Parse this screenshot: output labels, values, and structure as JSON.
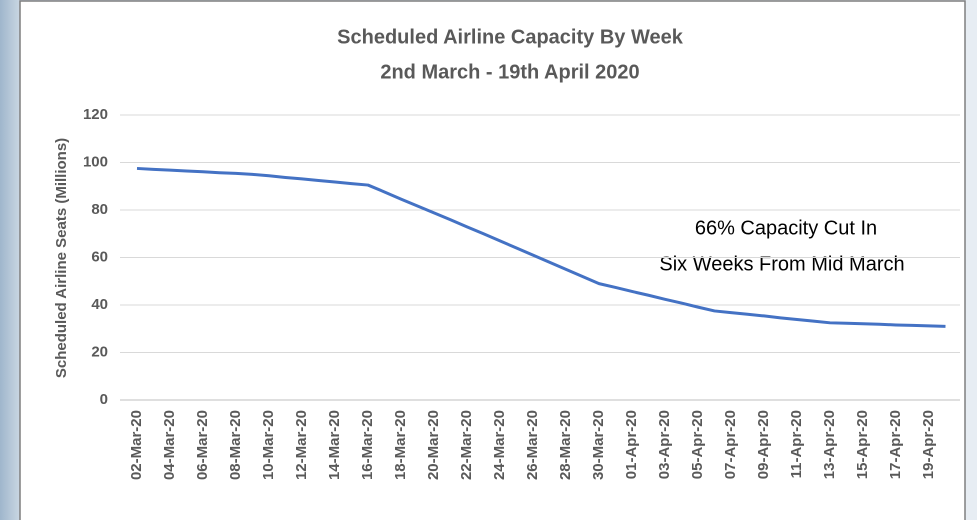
{
  "chart_data": {
    "type": "line",
    "title": "Scheduled Airline Capacity By Week",
    "subtitle": "2nd March - 19th April 2020",
    "y_label": "Scheduled Airline Seats (Millions)",
    "annotation": [
      "66% Capacity Cut In",
      "Six Weeks From Mid March"
    ],
    "categories": [
      "02-Mar-20",
      null,
      "04-Mar-20",
      null,
      "06-Mar-20",
      null,
      "08-Mar-20",
      null,
      "10-Mar-20",
      null,
      "12-Mar-20",
      null,
      "14-Mar-20",
      null,
      "16-Mar-20",
      null,
      "18-Mar-20",
      null,
      "20-Mar-20",
      null,
      "22-Mar-20",
      null,
      "24-Mar-20",
      null,
      "26-Mar-20",
      null,
      "28-Mar-20",
      null,
      "30-Mar-20",
      null,
      "01-Apr-20",
      null,
      "03-Apr-20",
      null,
      "05-Apr-20",
      null,
      "07-Apr-20",
      null,
      "09-Apr-20",
      null,
      "11-Apr-20",
      null,
      "13-Apr-20",
      null,
      "15-Apr-20",
      null,
      "17-Apr-20",
      null,
      "19-Apr-20",
      null
    ],
    "values": [
      97.5,
      97.1,
      96.8,
      96.4,
      96.1,
      95.7,
      95.4,
      95.0,
      94.4,
      93.7,
      93.1,
      92.4,
      91.8,
      91.1,
      90.5,
      87.6,
      84.6,
      81.7,
      78.8,
      75.9,
      72.9,
      70.0,
      67.0,
      64.0,
      61.0,
      58.0,
      55.0,
      52.0,
      49.0,
      47.4,
      45.7,
      44.1,
      42.4,
      40.8,
      39.1,
      37.5,
      36.8,
      36.1,
      35.4,
      34.6,
      33.9,
      33.2,
      32.5,
      32.3,
      32.1,
      31.9,
      31.6,
      31.4,
      31.2,
      31.0
    ],
    "color": "#4472c4",
    "ylim": [
      0,
      120
    ],
    "yticks": [
      0,
      20,
      40,
      60,
      80,
      100,
      120
    ],
    "grid": true
  }
}
